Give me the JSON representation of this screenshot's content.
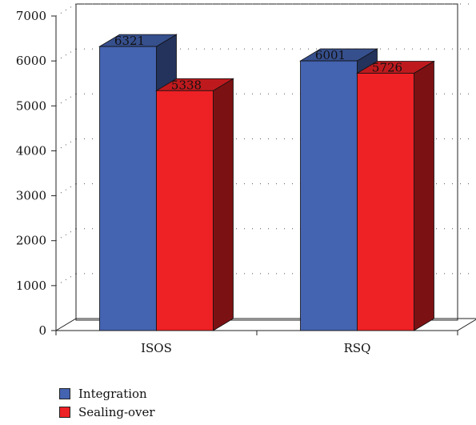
{
  "chart_data": {
    "type": "bar",
    "title": "",
    "xlabel": "",
    "ylabel": "",
    "categories": [
      "ISOS",
      "RSQ"
    ],
    "ylim": [
      0,
      7000
    ],
    "yticks": [
      0,
      1000,
      2000,
      3000,
      4000,
      5000,
      6000,
      7000
    ],
    "grid": true,
    "legend_position": "bottom-left",
    "series": [
      {
        "name": "Integration",
        "values": [
          6321,
          6001
        ],
        "color": "#4463B0"
      },
      {
        "name": "Sealing-over",
        "values": [
          5338,
          5726
        ],
        "color": "#EE2125"
      }
    ],
    "data_labels": [
      "6321",
      "5338",
      "6001",
      "5726"
    ]
  },
  "legend": [
    {
      "label": "Integration",
      "color": "#4463B0"
    },
    {
      "label": "Sealing-over",
      "color": "#EE2125"
    }
  ]
}
